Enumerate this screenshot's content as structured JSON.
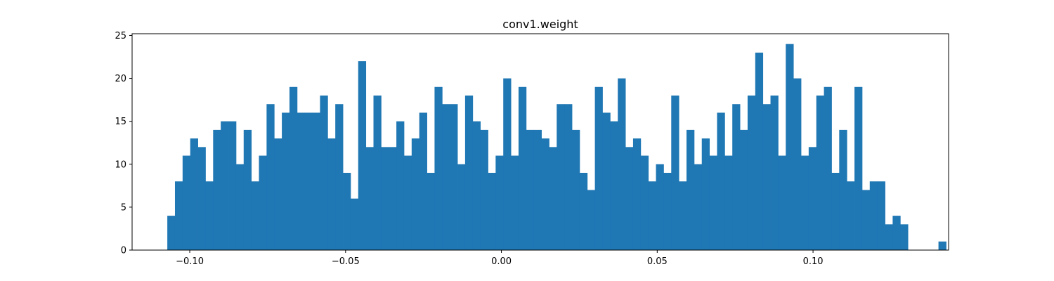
{
  "chart_data": {
    "type": "bar",
    "title": "conv1.weight",
    "xlabel": "",
    "ylabel": "",
    "x_range": [
      -0.1185,
      0.1435
    ],
    "ylim": [
      0,
      25.2
    ],
    "bin_start": -0.1072,
    "bin_width": 0.00245,
    "counts": [
      4,
      8,
      11,
      13,
      12,
      8,
      14,
      15,
      15,
      10,
      14,
      8,
      11,
      17,
      13,
      16,
      19,
      16,
      16,
      16,
      18,
      13,
      17,
      9,
      6,
      22,
      12,
      18,
      12,
      12,
      15,
      11,
      13,
      16,
      9,
      19,
      17,
      17,
      10,
      18,
      15,
      14,
      9,
      11,
      20,
      11,
      19,
      14,
      14,
      13,
      12,
      17,
      17,
      14,
      9,
      7,
      19,
      16,
      15,
      20,
      12,
      13,
      11,
      8,
      10,
      9,
      18,
      8,
      14,
      10,
      13,
      11,
      16,
      11,
      17,
      14,
      18,
      23,
      17,
      18,
      11,
      24,
      20,
      11,
      12,
      18,
      19,
      9,
      14,
      8,
      19,
      7,
      8,
      8,
      3,
      4,
      3,
      0,
      0,
      0,
      0,
      1
    ],
    "x_ticks": [
      {
        "value": -0.1,
        "label": "−0.10"
      },
      {
        "value": -0.05,
        "label": "−0.05"
      },
      {
        "value": 0.0,
        "label": "0.00"
      },
      {
        "value": 0.05,
        "label": "0.05"
      },
      {
        "value": 0.1,
        "label": "0.10"
      }
    ],
    "y_ticks": [
      {
        "value": 0,
        "label": "0"
      },
      {
        "value": 5,
        "label": "5"
      },
      {
        "value": 10,
        "label": "10"
      },
      {
        "value": 15,
        "label": "15"
      },
      {
        "value": 20,
        "label": "20"
      },
      {
        "value": 25,
        "label": "25"
      }
    ],
    "grid": false,
    "bar_color": "#1f77b4"
  }
}
